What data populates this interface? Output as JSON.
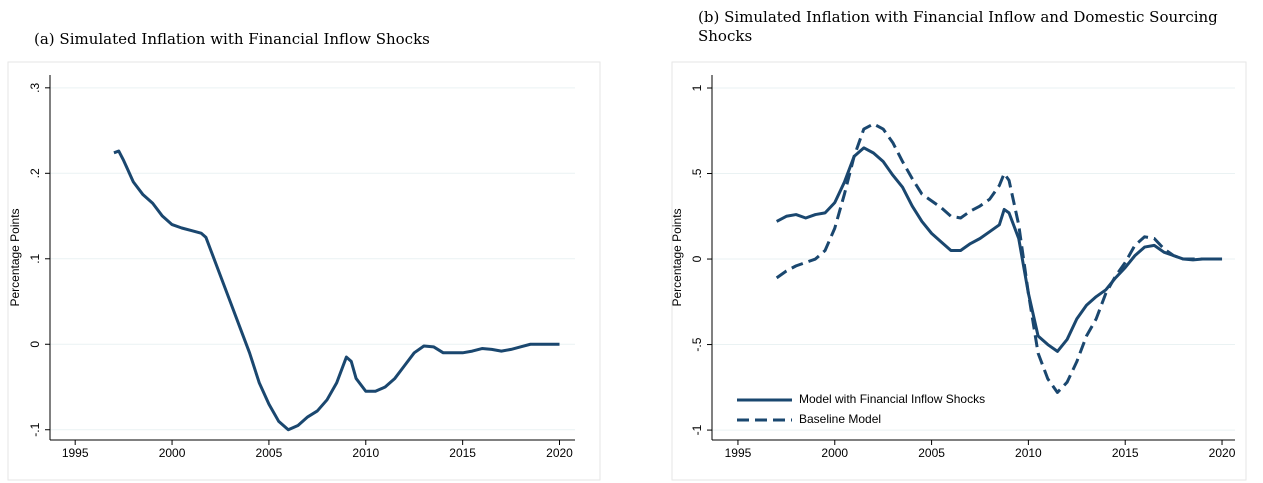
{
  "chart_data": [
    {
      "type": "line",
      "title": "(a) Simulated Inflation with Financial Inflow Shocks",
      "y_label": "Percentage Points",
      "x": [
        1997,
        1997.25,
        1997.5,
        1998,
        1998.5,
        1999,
        1999.5,
        2000,
        2000.5,
        2001,
        2001.5,
        2001.75,
        2002,
        2002.5,
        2003,
        2003.5,
        2004,
        2004.5,
        2005,
        2005.5,
        2006,
        2006.5,
        2007,
        2007.5,
        2008,
        2008.5,
        2009,
        2009.25,
        2009.5,
        2010,
        2010.5,
        2011,
        2011.5,
        2012,
        2012.5,
        2013,
        2013.5,
        2014,
        2014.5,
        2015,
        2015.5,
        2016,
        2016.5,
        2017,
        2017.5,
        2018,
        2018.5,
        2019,
        2020
      ],
      "series": [
        {
          "color": "#1a476f",
          "style": "solid",
          "values": [
            0.224,
            0.226,
            0.215,
            0.19,
            0.175,
            0.165,
            0.15,
            0.14,
            0.136,
            0.133,
            0.13,
            0.125,
            0.11,
            0.08,
            0.05,
            0.02,
            -0.01,
            -0.045,
            -0.07,
            -0.09,
            -0.1,
            -0.095,
            -0.085,
            -0.078,
            -0.065,
            -0.045,
            -0.015,
            -0.02,
            -0.04,
            -0.055,
            -0.055,
            -0.05,
            -0.04,
            -0.025,
            -0.01,
            -0.002,
            -0.003,
            -0.01,
            -0.01,
            -0.01,
            -0.008,
            -0.005,
            -0.006,
            -0.008,
            -0.006,
            -0.003,
            0,
            0,
            0
          ]
        }
      ],
      "xlim": [
        1993.7,
        2020.8
      ],
      "xticks": [
        1995,
        2000,
        2005,
        2010,
        2015,
        2020
      ],
      "ylim": [
        -0.112,
        0.315
      ],
      "yticks": [
        {
          "value": -0.1,
          "label": "-.1"
        },
        0,
        {
          "value": 0.1,
          "label": ".1"
        },
        {
          "value": 0.2,
          "label": ".2"
        },
        {
          "value": 0.3,
          "label": ".3"
        }
      ],
      "grid": true
    },
    {
      "type": "line",
      "title": "(b) Simulated Inflation with Financial Inflow and Domestic Sourcing Shocks",
      "y_label": "Percentage Points",
      "x": [
        1997,
        1997.5,
        1998,
        1998.5,
        1999,
        1999.5,
        2000,
        2000.5,
        2001,
        2001.5,
        2002,
        2002.5,
        2003,
        2003.5,
        2004,
        2004.5,
        2005,
        2005.5,
        2006,
        2006.5,
        2007,
        2007.5,
        2008,
        2008.5,
        2008.75,
        2009,
        2009.5,
        2010,
        2010.5,
        2011,
        2011.5,
        2012,
        2012.5,
        2013,
        2013.5,
        2014,
        2014.5,
        2015,
        2015.5,
        2016,
        2016.5,
        2017,
        2017.5,
        2018,
        2018.5,
        2019,
        2020
      ],
      "series": [
        {
          "name": "Model with Financial Inflow Shocks",
          "color": "#1a476f",
          "style": "solid",
          "values": [
            0.22,
            0.25,
            0.26,
            0.24,
            0.26,
            0.27,
            0.33,
            0.45,
            0.6,
            0.65,
            0.62,
            0.57,
            0.49,
            0.42,
            0.31,
            0.22,
            0.15,
            0.1,
            0.05,
            0.05,
            0.09,
            0.12,
            0.16,
            0.2,
            0.29,
            0.27,
            0.12,
            -0.2,
            -0.45,
            -0.5,
            -0.54,
            -0.47,
            -0.35,
            -0.27,
            -0.22,
            -0.18,
            -0.11,
            -0.05,
            0.02,
            0.07,
            0.08,
            0.04,
            0.02,
            0,
            -0.005,
            0,
            0
          ]
        },
        {
          "name": "Baseline Model",
          "color": "#1a476f",
          "style": "dashed",
          "values": [
            -0.11,
            -0.07,
            -0.04,
            -0.02,
            0,
            0.05,
            0.18,
            0.38,
            0.6,
            0.76,
            0.79,
            0.76,
            0.68,
            0.57,
            0.47,
            0.38,
            0.34,
            0.3,
            0.25,
            0.24,
            0.28,
            0.31,
            0.35,
            0.43,
            0.5,
            0.46,
            0.2,
            -0.2,
            -0.55,
            -0.7,
            -0.78,
            -0.72,
            -0.6,
            -0.45,
            -0.35,
            -0.2,
            -0.1,
            -0.02,
            0.08,
            0.13,
            0.12,
            0.06,
            0.02,
            0,
            0,
            0,
            0
          ]
        }
      ],
      "xlim": [
        1993.66,
        2020.67
      ],
      "xticks": [
        1995,
        2000,
        2005,
        2010,
        2015,
        2020
      ],
      "ylim": [
        -1.058,
        1.076
      ],
      "yticks": [
        -1,
        {
          "value": -0.5,
          "label": "-.5"
        },
        0,
        {
          "value": 0.5,
          "label": ".5"
        },
        1
      ],
      "grid": true,
      "legend": "lower left"
    }
  ]
}
